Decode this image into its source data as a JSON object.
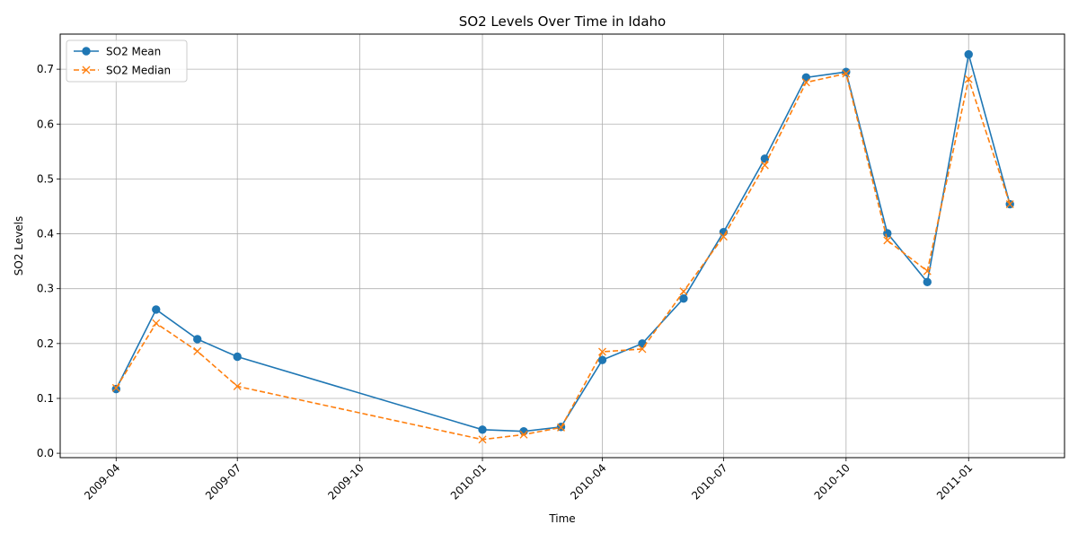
{
  "chart_data": {
    "type": "line",
    "title": "SO2 Levels Over Time in Idaho",
    "xlabel": "Time",
    "ylabel": "SO2 Levels",
    "x_tick_labels": [
      "2009-04",
      "2009-07",
      "2009-10",
      "2010-01",
      "2010-04",
      "2010-07",
      "2010-10",
      "2011-01"
    ],
    "y_ticks": [
      0.0,
      0.1,
      0.2,
      0.3,
      0.4,
      0.5,
      0.6,
      0.7
    ],
    "y_tick_labels": [
      "0.0",
      "0.1",
      "0.2",
      "0.3",
      "0.4",
      "0.5",
      "0.6",
      "0.7"
    ],
    "xlim": [
      "2009-02-18",
      "2011-03-14"
    ],
    "ylim": [
      -0.008,
      0.764
    ],
    "grid": true,
    "legend_position": "top-left",
    "x": [
      "2009-04-01",
      "2009-05-01",
      "2009-06-01",
      "2009-07-01",
      "2010-01-01",
      "2010-02-01",
      "2010-03-01",
      "2010-04-01",
      "2010-05-01",
      "2010-06-01",
      "2010-07-01",
      "2010-08-01",
      "2010-09-01",
      "2010-10-01",
      "2010-11-01",
      "2010-12-01",
      "2011-01-01",
      "2011-02-01"
    ],
    "series": [
      {
        "name": "SO2 Mean",
        "color": "#1f77b4",
        "line_style": "solid",
        "marker": "circle",
        "values": [
          0.117,
          0.262,
          0.208,
          0.176,
          0.043,
          0.04,
          0.048,
          0.17,
          0.2,
          0.282,
          0.403,
          0.537,
          0.685,
          0.695,
          0.401,
          0.312,
          0.727,
          0.454
        ]
      },
      {
        "name": "SO2 Median",
        "color": "#ff7f0e",
        "line_style": "dashed",
        "marker": "x",
        "values": [
          0.119,
          0.237,
          0.186,
          0.122,
          0.025,
          0.034,
          0.047,
          0.185,
          0.19,
          0.295,
          0.395,
          0.525,
          0.676,
          0.692,
          0.388,
          0.332,
          0.682,
          0.454
        ]
      }
    ]
  }
}
